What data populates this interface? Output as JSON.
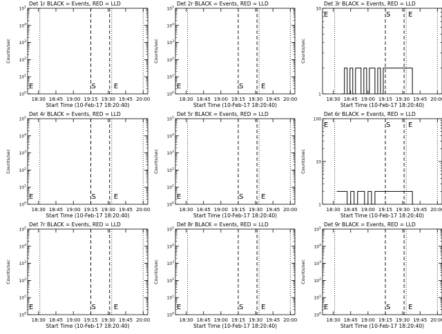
{
  "window": {
    "background": "#ffffff",
    "foreground": "#000000"
  },
  "xlabel": "Start Time (10-Feb-17 18:20:40)",
  "ylabel": "Counts/sec",
  "xticks": [
    "18:30",
    "18:45",
    "19:00",
    "19:15",
    "19:30",
    "19:45",
    "20:00"
  ],
  "markers": {
    "start": "S",
    "end": "E",
    "end_left": "E"
  },
  "chart_data": [
    {
      "type": "line",
      "title": "Det 1r BLACK = Events, RED = LLD",
      "yscale": "log",
      "ylim": [
        1,
        100000
      ],
      "yticks": [
        "10^0",
        "10^1",
        "10^2",
        "10^3",
        "10^4",
        "10^5"
      ],
      "series": []
    },
    {
      "type": "line",
      "title": "Det 2r BLACK = Events, RED = LLD",
      "yscale": "log",
      "ylim": [
        1,
        100000
      ],
      "yticks": [
        "10^0",
        "10^1",
        "10^2",
        "10^3",
        "10^4",
        "10^5"
      ],
      "series": []
    },
    {
      "type": "line",
      "title": "Det 3r BLACK = Events, RED = LLD",
      "yscale": "log",
      "ylim": [
        1,
        10
      ],
      "yticks": [
        "1",
        "10"
      ],
      "series": [
        {
          "x": [
            18.62,
            18.66,
            18.7,
            18.74,
            18.78,
            18.82,
            18.86,
            18.9,
            18.94,
            18.98,
            19.02,
            19.06,
            19.1,
            19.14,
            19.18,
            19.22,
            19.6,
            19.64
          ],
          "y": [
            1.0,
            2.0,
            1.0,
            2.0,
            1.0,
            2.0,
            2.0,
            1.0,
            2.0,
            1.0,
            2.0,
            2.0,
            1.0,
            2.0,
            1.0,
            2.0,
            2.0,
            1.0
          ]
        }
      ]
    },
    {
      "type": "line",
      "title": "Det 4r BLACK = Events, RED = LLD",
      "yscale": "log",
      "ylim": [
        1,
        100000
      ],
      "yticks": [
        "10^0",
        "10^1",
        "10^2",
        "10^3",
        "10^4",
        "10^5"
      ],
      "series": []
    },
    {
      "type": "line",
      "title": "Det 5r BLACK = Events, RED = LLD",
      "yscale": "log",
      "ylim": [
        1,
        100000
      ],
      "yticks": [
        "10^0",
        "10^1",
        "10^2",
        "10^3",
        "10^4",
        "10^5"
      ],
      "series": []
    },
    {
      "type": "line",
      "title": "Det 6r BLACK = Events, RED = LLD",
      "yscale": "log",
      "ylim": [
        1,
        100
      ],
      "yticks": [
        "1",
        "10",
        "100"
      ],
      "series": [
        {
          "x": [
            18.55,
            18.6,
            18.65,
            18.7,
            18.75,
            18.8,
            18.85,
            18.9,
            18.95,
            19.0,
            19.05,
            19.1,
            19.15,
            19.2,
            19.6,
            19.64
          ],
          "y": [
            2.0,
            2.0,
            2.0,
            1.0,
            2.0,
            1.0,
            2.0,
            2.0,
            1.0,
            2.0,
            1.0,
            2.0,
            2.0,
            2.0,
            2.0,
            1.0
          ]
        }
      ]
    },
    {
      "type": "line",
      "title": "Det 7r BLACK = Events, RED = LLD",
      "yscale": "log",
      "ylim": [
        1,
        100000
      ],
      "yticks": [
        "10^0",
        "10^1",
        "10^2",
        "10^3",
        "10^4",
        "10^5"
      ],
      "series": []
    },
    {
      "type": "line",
      "title": "Det 8r BLACK = Events, RED = LLD",
      "yscale": "log",
      "ylim": [
        1,
        100000
      ],
      "yticks": [
        "10^0",
        "10^1",
        "10^2",
        "10^3",
        "10^4",
        "10^5"
      ],
      "series": []
    },
    {
      "type": "line",
      "title": "Det 9r BLACK = Events, RED = LLD",
      "yscale": "log",
      "ylim": [
        1,
        100000
      ],
      "yticks": [
        "10^0",
        "10^1",
        "10^2",
        "10^3",
        "10^4",
        "10^5"
      ],
      "series": []
    }
  ]
}
